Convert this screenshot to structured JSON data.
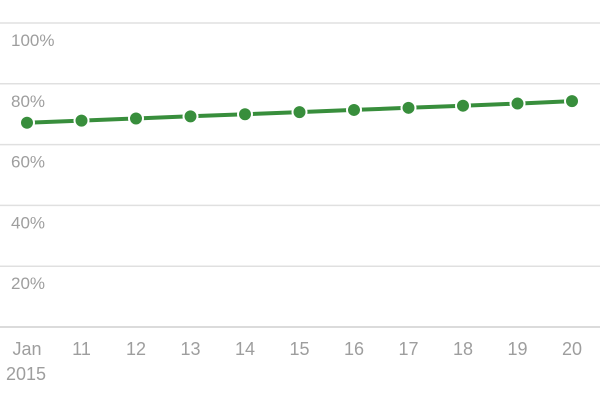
{
  "chart_data": {
    "type": "line",
    "title": "",
    "xlabel": "",
    "ylabel": "",
    "x_tick_labels": [
      "Jan",
      "11",
      "12",
      "13",
      "14",
      "15",
      "16",
      "17",
      "18",
      "19",
      "20"
    ],
    "x_sub_label": "2015",
    "y_tick_labels": [
      "100%",
      "80%",
      "60%",
      "40%",
      "20%"
    ],
    "y_ticks": [
      100,
      80,
      60,
      40,
      20
    ],
    "ylim": [
      0,
      100
    ],
    "grid": true,
    "legend": "none",
    "series": [
      {
        "color": "#388e3c",
        "x": [
          2010,
          2011,
          2012,
          2013,
          2014,
          2015,
          2016,
          2017,
          2018,
          2019,
          2020
        ],
        "values": [
          67.2,
          67.9,
          68.6,
          69.3,
          70.0,
          70.7,
          71.4,
          72.1,
          72.8,
          73.5,
          74.3
        ]
      }
    ]
  }
}
